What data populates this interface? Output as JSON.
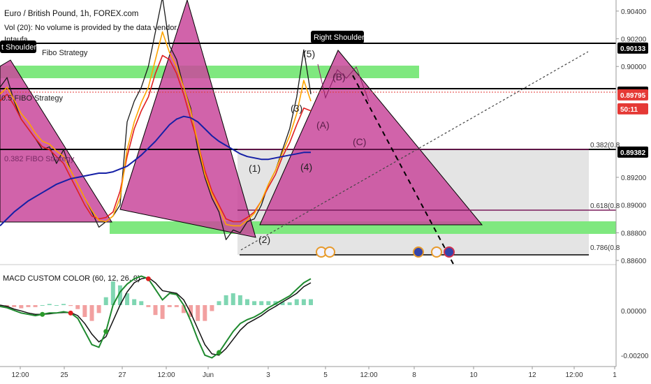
{
  "header": {
    "symbol": "Euro / British Pound, 1h, FOREX.com",
    "volume_note": "Vol (20): No volume is provided by the data vendor.",
    "partial": "Intaufa"
  },
  "labels": {
    "left_shoulder": "t Shoulder",
    "right_shoulder": "Right Shoulder",
    "fibo_top": "Fibo Strategy",
    "fibo_mid": "0.5 FIBO Strategy",
    "fibo_low": "0.382 FIBO Strategy",
    "waves": [
      "(1)",
      "(2)",
      "(3)",
      "(4)",
      "(5)",
      "(A)",
      "(B)",
      "(C)"
    ],
    "fib_levels": [
      "0.382(0.8",
      "0.618(0.8",
      "0.786(0.8"
    ]
  },
  "macd": {
    "title": "MACD CUSTOM COLOR (60, 12, 26, 9)",
    "y_ticks": [
      "0.00000",
      "-0.00200"
    ]
  },
  "colors": {
    "pattern_fill": "#c9489b",
    "zone_green": "#66e266",
    "zone_gray": "#d9d9d9",
    "ma_blue": "#1520a6",
    "ma_orange": "#ffa500",
    "ma_red": "#e02020",
    "macd_green": "#1e8a2e",
    "hist_pos": "#7fd6b2",
    "hist_neg": "#f2a0a0",
    "price_tag_black": "#000000",
    "price_tag_red": "#e53935"
  },
  "chart_data": {
    "type": "line",
    "title": "Euro / British Pound, 1h, FOREX.com",
    "xlabel": "",
    "ylabel": "",
    "ylim": [
      0.8857,
      0.9048
    ],
    "y_ticks": [
      "0.90400",
      "0.90200",
      "0.90000",
      "0.89200",
      "0.89000",
      "0.88800",
      "0.88600"
    ],
    "x_ticks": [
      "12:00",
      "25",
      "27",
      "12:00",
      "Jun",
      "3",
      "5",
      "12:00",
      "8",
      "10",
      "12",
      "12:00",
      "1"
    ],
    "price_tags": [
      {
        "value": "0.90133",
        "style": "black"
      },
      {
        "value": "0.89815",
        "style": "black"
      },
      {
        "value": "0.89795",
        "style": "red"
      },
      {
        "value": "50:11",
        "style": "red"
      },
      {
        "value": "0.89382",
        "style": "black"
      }
    ],
    "horizontal_levels": [
      0.90133,
      0.89815,
      0.89382,
      0.8896,
      0.8865
    ],
    "series": [
      {
        "values": [
          0.8985,
          0.8992,
          0.8975,
          0.8962,
          0.8955,
          0.8948,
          0.894,
          0.8942,
          0.893,
          0.894,
          0.8925,
          0.8915,
          0.8905,
          0.8895,
          0.8884,
          0.8888,
          0.8892,
          0.89,
          0.896,
          0.8975,
          0.8985,
          0.9,
          0.9025,
          0.905,
          0.9015,
          0.9005,
          0.8985,
          0.897,
          0.894,
          0.892,
          0.8905,
          0.8895,
          0.8875,
          0.8882,
          0.888,
          0.8888,
          0.889,
          0.89,
          0.8915,
          0.8925,
          0.894,
          0.8955,
          0.8978,
          0.9012,
          0.898
        ]
      },
      {
        "values": [
          0.8975,
          0.898,
          0.8972,
          0.8962,
          0.8955,
          0.8948,
          0.8942,
          0.894,
          0.8935,
          0.893,
          0.892,
          0.891,
          0.89,
          0.8892,
          0.889,
          0.8891,
          0.8895,
          0.891,
          0.8935,
          0.8955,
          0.8968,
          0.8978,
          0.8995,
          0.9008,
          0.9005,
          0.8995,
          0.898,
          0.8962,
          0.8945,
          0.8925,
          0.891,
          0.89,
          0.889,
          0.8888,
          0.8888,
          0.8891,
          0.8895,
          0.8903,
          0.8913,
          0.8922,
          0.8935,
          0.8945,
          0.8958,
          0.897,
          0.8968
        ]
      },
      {
        "values": [
          0.898,
          0.8985,
          0.8976,
          0.8966,
          0.896,
          0.8952,
          0.8946,
          0.8944,
          0.8939,
          0.8935,
          0.8925,
          0.8915,
          0.8905,
          0.8896,
          0.8889,
          0.8888,
          0.8892,
          0.8905,
          0.894,
          0.896,
          0.8974,
          0.8985,
          0.9005,
          0.9025,
          0.901,
          0.9,
          0.8985,
          0.8968,
          0.8945,
          0.8922,
          0.8908,
          0.8898,
          0.8886,
          0.8885,
          0.8885,
          0.8889,
          0.8894,
          0.8903,
          0.8915,
          0.8925,
          0.8938,
          0.895,
          0.8966,
          0.899,
          0.8975
        ]
      },
      {
        "values": [
          0.8885,
          0.889,
          0.8895,
          0.8899,
          0.8903,
          0.8906,
          0.8909,
          0.8912,
          0.8915,
          0.8917,
          0.8919,
          0.892,
          0.8921,
          0.8922,
          0.8923,
          0.8923,
          0.8924,
          0.8926,
          0.8928,
          0.8932,
          0.8936,
          0.8941,
          0.8946,
          0.8952,
          0.8958,
          0.8962,
          0.8964,
          0.8963,
          0.896,
          0.8955,
          0.895,
          0.8946,
          0.8943,
          0.894,
          0.8937,
          0.8935,
          0.8934,
          0.8933,
          0.8933,
          0.8934,
          0.8935,
          0.8936,
          0.8937,
          0.8938,
          0.8938
        ]
      }
    ],
    "macd_panel": {
      "ylim": [
        -0.0022,
        0.0013
      ],
      "series": [
        {
          "values": [
            -5e-05,
            -0.0001,
            -0.0002,
            -0.0003,
            -0.00035,
            -0.0004,
            -0.00035,
            -0.0003,
            -0.0003,
            -0.00025,
            -0.0003,
            -0.0005,
            -0.001,
            -0.0015,
            -0.0016,
            -0.001,
            0.0,
            0.0005,
            0.0008,
            0.001,
            0.0011,
            0.001,
            0.0006,
            0.0002,
            0.00045,
            0.0004,
            0.0,
            -0.0006,
            -0.0013,
            -0.0019,
            -0.002,
            -0.0018,
            -0.0014,
            -0.001,
            -0.0007,
            -0.00055,
            -0.00045,
            -0.0003,
            -0.0001,
            5e-05,
            0.0002,
            0.00035,
            0.0006,
            0.00085,
            0.001
          ]
        },
        {
          "values": [
            0.0,
            -5e-05,
            -0.00015,
            -0.00022,
            -0.0003,
            -0.00035,
            -0.00035,
            -0.00033,
            -0.0003,
            -0.00028,
            -0.00028,
            -0.0004,
            -0.0007,
            -0.0011,
            -0.0014,
            -0.0012,
            -0.0006,
            0.0,
            0.0005,
            0.00085,
            0.001,
            0.00105,
            0.00085,
            0.00055,
            0.0005,
            0.00045,
            0.0002,
            -0.0003,
            -0.0009,
            -0.0015,
            -0.00185,
            -0.0019,
            -0.00165,
            -0.0013,
            -0.00095,
            -0.0007,
            -0.00055,
            -0.0004,
            -0.0002,
            -5e-05,
            0.00012,
            0.00028,
            0.00045,
            0.0007,
            0.00085
          ]
        }
      ]
    }
  }
}
